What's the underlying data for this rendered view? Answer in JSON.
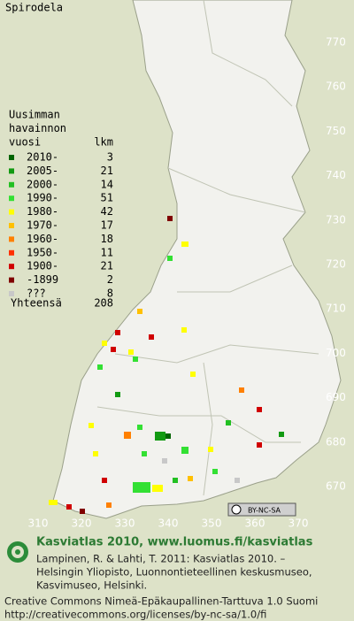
{
  "title": "Spirodela",
  "legend": {
    "heading": [
      "Uusimman",
      "havainnon",
      "vuosi"
    ],
    "count_header": "lkm",
    "items": [
      {
        "label": "2010-",
        "count": "3",
        "color": "#006400"
      },
      {
        "label": "2005-",
        "count": "21",
        "color": "#129a12"
      },
      {
        "label": "2000-",
        "count": "14",
        "color": "#22c022"
      },
      {
        "label": "1990-",
        "count": "51",
        "color": "#33e033"
      },
      {
        "label": "1980-",
        "count": "42",
        "color": "#ffff00"
      },
      {
        "label": "1970-",
        "count": "17",
        "color": "#ffc000"
      },
      {
        "label": "1960-",
        "count": "18",
        "color": "#ff8000"
      },
      {
        "label": "1950-",
        "count": "11",
        "color": "#ff3000"
      },
      {
        "label": "1900-",
        "count": "21",
        "color": "#d00000"
      },
      {
        "label": "-1899",
        "count": "2",
        "color": "#800000"
      },
      {
        "label": "???",
        "count": "8",
        "color": "#c8c8c8"
      }
    ],
    "total": {
      "label": "Yhteensä",
      "count": "208"
    }
  },
  "grid_labels": {
    "north": [
      "770",
      "760",
      "750",
      "740",
      "730",
      "720",
      "710",
      "700",
      "690",
      "680",
      "670"
    ],
    "east": [
      "310",
      "320",
      "330",
      "340",
      "350",
      "360",
      "370"
    ]
  },
  "badge": "BY-NC-SA",
  "footer": {
    "brand": "Kasviatlas 2010, www.luomus.fi/kasviatlas",
    "citation": [
      "Lampinen, R. & Lahti, T. 2011: Kasviatlas 2010. –",
      "Helsingin Yliopisto, Luonnontieteellinen keskusmuseo,",
      "Kasvimuseo, Helsinki."
    ],
    "license": [
      "Creative Commons Nimeä-Epäkaupallinen-Tarttuva 1.0 Suomi",
      "http://creativecommons.org/licenses/by-nc-sa/1.0/fi"
    ]
  }
}
